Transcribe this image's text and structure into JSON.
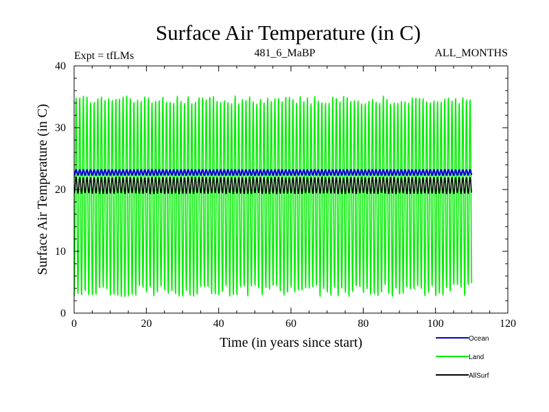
{
  "chart_data": {
    "type": "line",
    "title": "Surface Air Temperature (in C)",
    "subtitle_left": "Expt = tfLMs",
    "subtitle_center": "481_6_MaBP",
    "subtitle_right": "ALL_MONTHS",
    "xlabel": "Time (in years since start)",
    "ylabel": "Surface Air Temperature (in C)",
    "xlim": [
      0,
      120
    ],
    "ylim": [
      0,
      40
    ],
    "xticks": [
      0,
      20,
      40,
      60,
      80,
      100,
      120
    ],
    "yticks": [
      0,
      10,
      20,
      30,
      40
    ],
    "x_end": 110,
    "samples_per_year": 12,
    "series": [
      {
        "name": "Land",
        "color": "#00ee00",
        "min": 2.3,
        "max": 35.5,
        "cycle": "annual"
      },
      {
        "name": "AllSurf",
        "color": "#000000",
        "min": 19.3,
        "max": 22.0,
        "cycle": "annual"
      },
      {
        "name": "Ocean",
        "color": "#0000cc",
        "min": 22.3,
        "max": 23.2,
        "cycle": "annual"
      }
    ],
    "legend": [
      {
        "name": "Ocean",
        "color": "#0000cc"
      },
      {
        "name": "Land",
        "color": "#00ee00"
      },
      {
        "name": "AllSurf",
        "color": "#000000"
      }
    ]
  }
}
